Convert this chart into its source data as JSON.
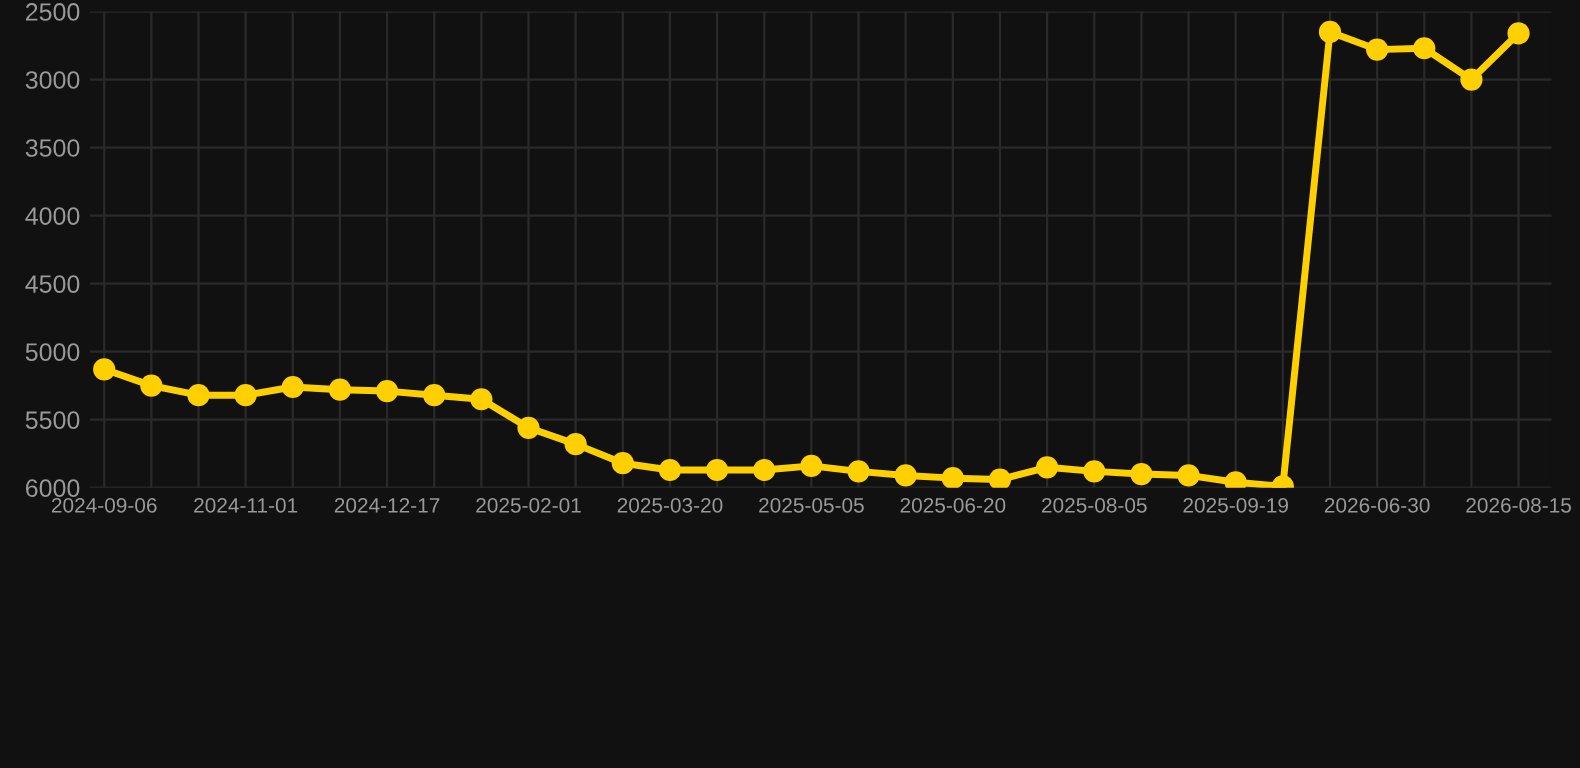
{
  "chart_data": {
    "type": "line",
    "categories": [
      "2024-09-06",
      null,
      null,
      "2024-11-01",
      null,
      null,
      "2024-12-17",
      null,
      null,
      "2025-02-01",
      null,
      null,
      "2025-03-20",
      null,
      null,
      "2025-05-05",
      null,
      null,
      "2025-06-20",
      null,
      null,
      "2025-08-05",
      null,
      null,
      "2025-09-19",
      null,
      null,
      "2026-06-30",
      null,
      null,
      "2026-08-15"
    ],
    "series": [
      {
        "color": "#ffd000",
        "values": [
          5130,
          5250,
          5320,
          5320,
          5260,
          5280,
          5290,
          5320,
          5350,
          5560,
          5680,
          5820,
          5870,
          5870,
          5870,
          5840,
          5880,
          5910,
          5930,
          5940,
          5850,
          5880,
          5900,
          5910,
          5960,
          5990,
          2650,
          2780,
          2770,
          3000,
          2660
        ]
      }
    ],
    "ylim": [
      6000,
      2500
    ],
    "yticks": [
      2500,
      3000,
      3500,
      4000,
      4500,
      5000,
      5500,
      6000
    ],
    "grid": true,
    "marker": "circle",
    "line_style": "solid"
  }
}
